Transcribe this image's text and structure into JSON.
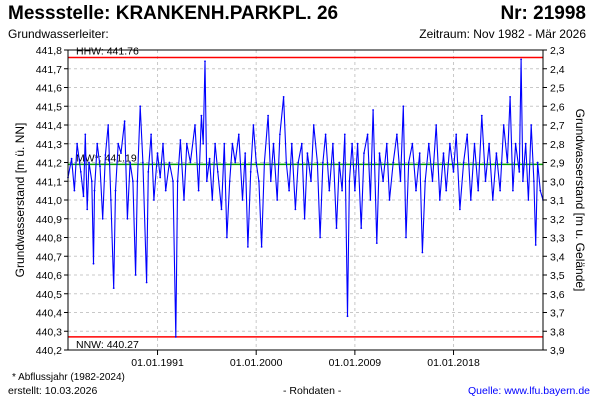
{
  "header": {
    "title": "Messstelle: KRANKENH.PARKPL. 26",
    "number": "Nr: 21998",
    "aquifer": "Grundwasserleiter:",
    "period": "Zeitraum: Nov 1982 - Mär 2026"
  },
  "footer": {
    "note": "* Abflussjahr (1982-2024)",
    "created": "erstellt:  10.03.2026",
    "raw": "- Rohdaten -",
    "source": "Quelle: www.lfu.bayern.de"
  },
  "colors": {
    "series": "#0000ff",
    "extreme_lines": "#ff0000",
    "mean_line": "#00a000",
    "grid": "#c8c8c8"
  },
  "chart_data": {
    "type": "line",
    "xlabel": "",
    "ylabel": "Grundwasserstand [m ü. NN]",
    "ylabel_right": "Grundwasserstand [m u. Gelände]",
    "xlim": [
      "1982-11-01",
      "2026-03-01"
    ],
    "ylim": [
      440.2,
      441.8
    ],
    "ylim_right": [
      3.9,
      2.3
    ],
    "x_ticks": [
      "1991-01-01",
      "2000-01-01",
      "2009-01-01",
      "2018-01-01"
    ],
    "x_tick_labels": [
      "01.01.1991",
      "01.01.2000",
      "01.01.2009",
      "01.01.2018"
    ],
    "y_ticks": [
      441.8,
      441.7,
      441.6,
      441.5,
      441.4,
      441.3,
      441.2,
      441.1,
      441.0,
      440.9,
      440.8,
      440.7,
      440.6,
      440.5,
      440.4,
      440.3,
      440.2
    ],
    "y_tick_labels": [
      "441,8",
      "441,7",
      "441,6",
      "441,5",
      "441,4",
      "441,3",
      "441,2",
      "441,1",
      "441,0",
      "440,9",
      "440,8",
      "440,7",
      "440,6",
      "440,5",
      "440,4",
      "440,3",
      "440,2"
    ],
    "y_ticks_right": [
      2.3,
      2.4,
      2.5,
      2.6,
      2.7,
      2.8,
      2.9,
      3.0,
      3.1,
      3.2,
      3.3,
      3.4,
      3.5,
      3.6,
      3.7,
      3.8,
      3.9
    ],
    "y_tick_labels_right": [
      "2,3",
      "2,4",
      "2,5",
      "2,6",
      "2,7",
      "2,8",
      "2,9",
      "3,0",
      "3,1",
      "3,2",
      "3,3",
      "3,4",
      "3,5",
      "3,6",
      "3,7",
      "3,8",
      "3,9"
    ],
    "grid": true,
    "reference_lines": [
      {
        "label": "HHW: 441.76",
        "value": 441.76,
        "color": "#ff0000"
      },
      {
        "label": "NNW: 440.27",
        "value": 440.27,
        "color": "#ff0000"
      },
      {
        "label": "MW*: 441.19",
        "value": 441.19,
        "color": "#00a000"
      }
    ],
    "series": [
      {
        "values": [
          [
            "1982-11-01",
            441.12
          ],
          [
            "1983-03-01",
            441.22
          ],
          [
            "1983-06-01",
            441.05
          ],
          [
            "1983-09-01",
            441.3
          ],
          [
            "1984-01-01",
            441.15
          ],
          [
            "1984-04-01",
            441.02
          ],
          [
            "1984-06-01",
            441.35
          ],
          [
            "1984-08-01",
            440.95
          ],
          [
            "1984-10-01",
            441.2
          ],
          [
            "1985-01-01",
            441.1
          ],
          [
            "1985-03-01",
            440.66
          ],
          [
            "1985-04-01",
            441.05
          ],
          [
            "1985-07-01",
            441.3
          ],
          [
            "1985-10-01",
            441.18
          ],
          [
            "1986-01-01",
            440.9
          ],
          [
            "1986-04-01",
            441.24
          ],
          [
            "1986-07-01",
            441.4
          ],
          [
            "1986-10-01",
            441.0
          ],
          [
            "1987-01-01",
            440.53
          ],
          [
            "1987-03-01",
            441.05
          ],
          [
            "1987-06-01",
            441.3
          ],
          [
            "1987-09-01",
            441.25
          ],
          [
            "1988-01-01",
            441.42
          ],
          [
            "1988-04-01",
            440.9
          ],
          [
            "1988-07-01",
            441.2
          ],
          [
            "1988-10-01",
            441.1
          ],
          [
            "1989-01-01",
            440.6
          ],
          [
            "1989-03-01",
            441.1
          ],
          [
            "1989-06-01",
            441.5
          ],
          [
            "1989-09-01",
            441.2
          ],
          [
            "1990-01-01",
            440.56
          ],
          [
            "1990-03-01",
            441.15
          ],
          [
            "1990-06-01",
            441.35
          ],
          [
            "1990-09-01",
            441.0
          ],
          [
            "1991-01-01",
            441.25
          ],
          [
            "1991-04-01",
            441.12
          ],
          [
            "1991-07-01",
            441.3
          ],
          [
            "1991-10-01",
            441.05
          ],
          [
            "1992-02-01",
            441.2
          ],
          [
            "1992-06-01",
            441.1
          ],
          [
            "1992-09-01",
            440.27
          ],
          [
            "1992-11-01",
            441.1
          ],
          [
            "1993-02-01",
            441.32
          ],
          [
            "1993-06-01",
            441.0
          ],
          [
            "1993-09-01",
            441.3
          ],
          [
            "1994-01-01",
            441.2
          ],
          [
            "1994-06-01",
            441.4
          ],
          [
            "1994-10-01",
            441.05
          ],
          [
            "1995-01-01",
            441.45
          ],
          [
            "1995-03-01",
            441.3
          ],
          [
            "1995-05-01",
            441.74
          ],
          [
            "1995-07-01",
            441.1
          ],
          [
            "1995-10-01",
            441.22
          ],
          [
            "1996-01-01",
            441.0
          ],
          [
            "1996-04-01",
            441.3
          ],
          [
            "1996-07-01",
            441.15
          ],
          [
            "1996-11-01",
            440.95
          ],
          [
            "1997-02-01",
            441.3
          ],
          [
            "1997-05-01",
            440.8
          ],
          [
            "1997-08-01",
            441.1
          ],
          [
            "1997-11-01",
            441.3
          ],
          [
            "1998-02-01",
            441.2
          ],
          [
            "1998-06-01",
            441.35
          ],
          [
            "1998-10-01",
            441.0
          ],
          [
            "1999-01-01",
            441.25
          ],
          [
            "1999-04-01",
            440.75
          ],
          [
            "1999-07-01",
            441.15
          ],
          [
            "1999-10-01",
            441.4
          ],
          [
            "2000-01-01",
            441.2
          ],
          [
            "2000-04-01",
            441.1
          ],
          [
            "2000-07-01",
            440.75
          ],
          [
            "2000-10-01",
            441.2
          ],
          [
            "2001-02-01",
            441.45
          ],
          [
            "2001-05-01",
            441.1
          ],
          [
            "2001-08-01",
            441.3
          ],
          [
            "2001-12-01",
            441.0
          ],
          [
            "2002-03-01",
            441.35
          ],
          [
            "2002-07-01",
            441.55
          ],
          [
            "2002-10-01",
            441.2
          ],
          [
            "2003-01-01",
            441.05
          ],
          [
            "2003-04-01",
            441.3
          ],
          [
            "2003-08-01",
            440.95
          ],
          [
            "2003-11-01",
            441.2
          ],
          [
            "2004-03-01",
            441.3
          ],
          [
            "2004-06-01",
            440.9
          ],
          [
            "2004-09-01",
            441.25
          ],
          [
            "2005-01-01",
            441.1
          ],
          [
            "2005-04-01",
            441.4
          ],
          [
            "2005-08-01",
            441.2
          ],
          [
            "2005-11-01",
            440.8
          ],
          [
            "2006-02-01",
            441.2
          ],
          [
            "2006-05-01",
            441.35
          ],
          [
            "2006-09-01",
            441.05
          ],
          [
            "2007-01-01",
            441.3
          ],
          [
            "2007-05-01",
            440.85
          ],
          [
            "2007-08-01",
            441.2
          ],
          [
            "2007-11-01",
            441.05
          ],
          [
            "2008-02-01",
            441.35
          ],
          [
            "2008-05-01",
            440.38
          ],
          [
            "2008-07-01",
            441.1
          ],
          [
            "2008-10-01",
            441.3
          ],
          [
            "2009-01-01",
            441.05
          ],
          [
            "2009-04-01",
            441.3
          ],
          [
            "2009-08-01",
            440.85
          ],
          [
            "2009-11-01",
            441.25
          ],
          [
            "2010-03-01",
            441.35
          ],
          [
            "2010-06-01",
            441.0
          ],
          [
            "2010-09-01",
            441.48
          ],
          [
            "2011-01-01",
            440.77
          ],
          [
            "2011-04-01",
            441.25
          ],
          [
            "2011-08-01",
            441.1
          ],
          [
            "2011-12-01",
            441.3
          ],
          [
            "2012-03-01",
            441.0
          ],
          [
            "2012-07-01",
            441.2
          ],
          [
            "2012-11-01",
            441.35
          ],
          [
            "2013-03-01",
            441.1
          ],
          [
            "2013-06-01",
            441.5
          ],
          [
            "2013-09-01",
            440.8
          ],
          [
            "2013-12-01",
            441.2
          ],
          [
            "2014-04-01",
            441.3
          ],
          [
            "2014-08-01",
            441.05
          ],
          [
            "2014-12-01",
            441.25
          ],
          [
            "2015-03-01",
            440.72
          ],
          [
            "2015-06-01",
            441.1
          ],
          [
            "2015-10-01",
            441.3
          ],
          [
            "2016-02-01",
            441.1
          ],
          [
            "2016-06-01",
            441.4
          ],
          [
            "2016-10-01",
            441.0
          ],
          [
            "2017-02-01",
            441.25
          ],
          [
            "2017-05-01",
            441.05
          ],
          [
            "2017-09-01",
            441.3
          ],
          [
            "2018-01-01",
            441.15
          ],
          [
            "2018-04-01",
            441.35
          ],
          [
            "2018-08-01",
            440.95
          ],
          [
            "2018-12-01",
            441.2
          ],
          [
            "2019-04-01",
            441.35
          ],
          [
            "2019-08-01",
            441.0
          ],
          [
            "2019-12-01",
            441.3
          ],
          [
            "2020-04-01",
            441.05
          ],
          [
            "2020-08-01",
            441.45
          ],
          [
            "2020-12-01",
            441.1
          ],
          [
            "2021-04-01",
            441.3
          ],
          [
            "2021-08-01",
            441.0
          ],
          [
            "2021-12-01",
            441.25
          ],
          [
            "2022-04-01",
            441.05
          ],
          [
            "2022-08-01",
            441.4
          ],
          [
            "2022-12-01",
            441.2
          ],
          [
            "2023-03-01",
            441.55
          ],
          [
            "2023-06-01",
            441.05
          ],
          [
            "2023-09-01",
            441.3
          ],
          [
            "2024-01-01",
            441.15
          ],
          [
            "2024-03-01",
            441.75
          ],
          [
            "2024-05-01",
            441.1
          ],
          [
            "2024-08-01",
            441.3
          ],
          [
            "2024-11-01",
            441.0
          ],
          [
            "2025-02-01",
            441.4
          ],
          [
            "2025-05-01",
            441.1
          ],
          [
            "2025-07-01",
            440.76
          ],
          [
            "2025-09-01",
            441.2
          ],
          [
            "2025-12-01",
            441.05
          ],
          [
            "2026-03-01",
            441.0
          ]
        ]
      }
    ]
  }
}
